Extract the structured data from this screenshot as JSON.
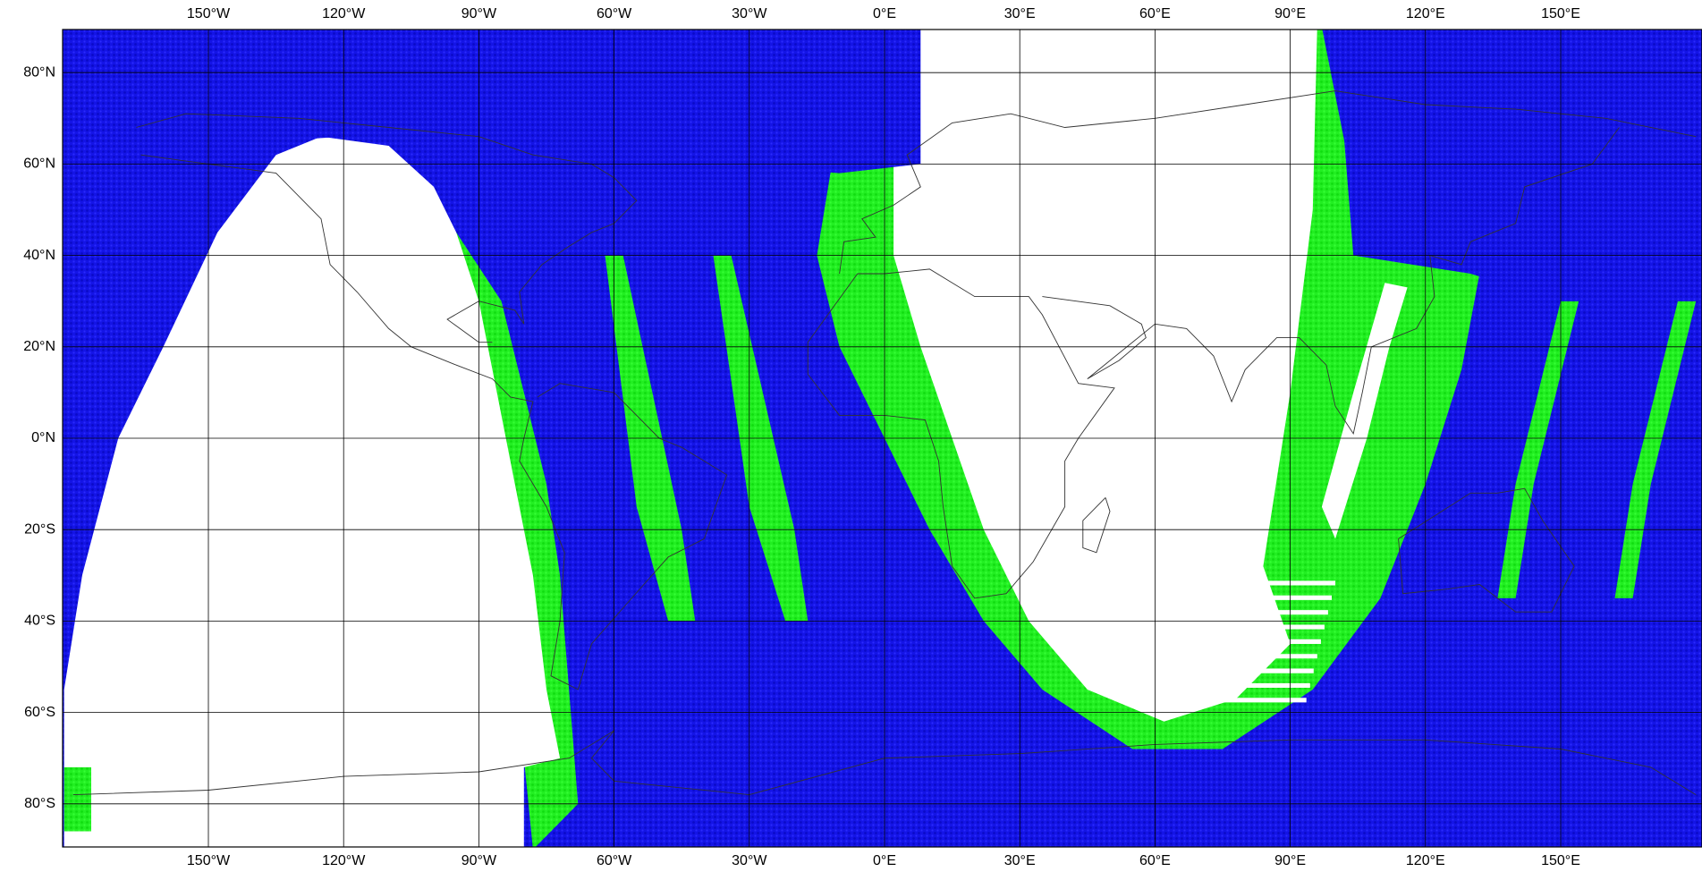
{
  "map": {
    "lon_ticks": [
      {
        "value": -150,
        "label": "150°W"
      },
      {
        "value": -120,
        "label": "120°W"
      },
      {
        "value": -90,
        "label": "90°W"
      },
      {
        "value": -60,
        "label": "60°W"
      },
      {
        "value": -30,
        "label": "30°W"
      },
      {
        "value": 0,
        "label": "0°E"
      },
      {
        "value": 30,
        "label": "30°E"
      },
      {
        "value": 60,
        "label": "60°E"
      },
      {
        "value": 90,
        "label": "90°E"
      },
      {
        "value": 120,
        "label": "120°E"
      },
      {
        "value": 150,
        "label": "150°E"
      }
    ],
    "lat_ticks": [
      {
        "value": 80,
        "label": "80°N"
      },
      {
        "value": 60,
        "label": "60°N"
      },
      {
        "value": 40,
        "label": "40°N"
      },
      {
        "value": 20,
        "label": "20°N"
      },
      {
        "value": 0,
        "label": "0°N"
      },
      {
        "value": -20,
        "label": "20°S"
      },
      {
        "value": -40,
        "label": "40°S"
      },
      {
        "value": -60,
        "label": "60°S"
      },
      {
        "value": -80,
        "label": "80°S"
      }
    ]
  }
}
